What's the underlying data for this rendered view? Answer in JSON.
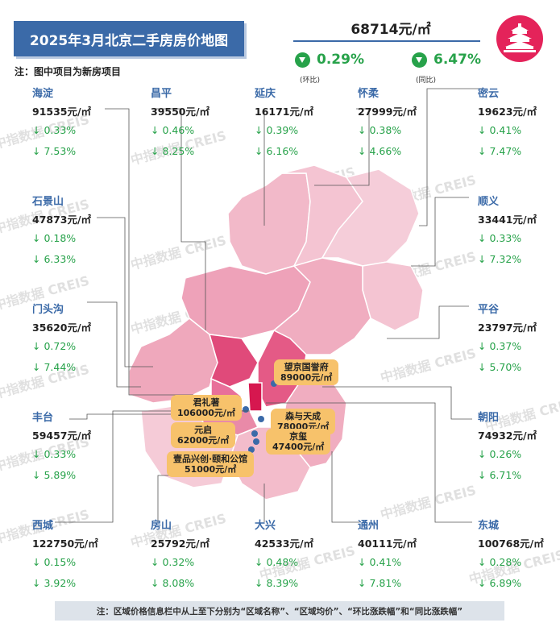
{
  "header": {
    "title": "2025年3月北京二手房房价地图",
    "note": "注：图中项目为新房项目"
  },
  "summary": {
    "avg_price": "68714元/㎡",
    "mom_change": "0.29%",
    "mom_label": "(环比)",
    "yoy_change": "6.47%",
    "yoy_label": "(同比)"
  },
  "logo_icon": "temple-of-heaven-icon",
  "colors": {
    "title_bg": "#3b6aa8",
    "accent": "#e4235a",
    "decline": "#27a24a",
    "project_label": "#f7c26b"
  },
  "districts": [
    {
      "name": "海淀",
      "price": "91535元/㎡",
      "mom": "↓ 0.33%",
      "yoy": "↓ 7.53%"
    },
    {
      "name": "昌平",
      "price": "39550元/㎡",
      "mom": "↓ 0.46%",
      "yoy": "↓ 8.25%"
    },
    {
      "name": "延庆",
      "price": "16171元/㎡",
      "mom": "↓ 0.39%",
      "yoy": "↓ 6.16%"
    },
    {
      "name": "怀柔",
      "price": "27999元/㎡",
      "mom": "↓ 0.38%",
      "yoy": "↓ 4.66%"
    },
    {
      "name": "密云",
      "price": "19623元/㎡",
      "mom": "↓ 0.41%",
      "yoy": "↓ 7.47%"
    },
    {
      "name": "石景山",
      "price": "47873元/㎡",
      "mom": "↓ 0.18%",
      "yoy": "↓ 6.33%"
    },
    {
      "name": "顺义",
      "price": "33441元/㎡",
      "mom": "↓ 0.33%",
      "yoy": "↓ 7.32%"
    },
    {
      "name": "门头沟",
      "price": "35620元/㎡",
      "mom": "↓ 0.72%",
      "yoy": "↓ 7.44%"
    },
    {
      "name": "平谷",
      "price": "23797元/㎡",
      "mom": "↓ 0.37%",
      "yoy": "↓ 5.70%"
    },
    {
      "name": "丰台",
      "price": "59457元/㎡",
      "mom": "↓ 0.33%",
      "yoy": "↓ 5.89%"
    },
    {
      "name": "朝阳",
      "price": "74932元/㎡",
      "mom": "↓ 0.26%",
      "yoy": "↓ 6.71%"
    },
    {
      "name": "西城",
      "price": "122750元/㎡",
      "mom": "↓ 0.15%",
      "yoy": "↓ 3.92%"
    },
    {
      "name": "房山",
      "price": "25792元/㎡",
      "mom": "↓ 0.32%",
      "yoy": "↓ 8.08%"
    },
    {
      "name": "大兴",
      "price": "42533元/㎡",
      "mom": "↓ 0.48%",
      "yoy": "↓ 8.39%"
    },
    {
      "name": "通州",
      "price": "40111元/㎡",
      "mom": "↓ 0.41%",
      "yoy": "↓ 7.81%"
    },
    {
      "name": "东城",
      "price": "100768元/㎡",
      "mom": "↓ 0.28%",
      "yoy": "↓ 6.89%"
    }
  ],
  "projects": [
    {
      "name": "望京国誉府",
      "price": "89000元/㎡"
    },
    {
      "name": "君礼著",
      "price": "106000元/㎡"
    },
    {
      "name": "森与天成",
      "price": "78000元/㎡"
    },
    {
      "name": "元启",
      "price": "62000元/㎡"
    },
    {
      "name": "京玺",
      "price": "47400元/㎡"
    },
    {
      "name": "壹品兴创·颐和公馆",
      "price": "51000元/㎡"
    }
  ],
  "watermark": "中指数据 CREIS",
  "footer": "注：区域价格信息栏中从上至下分别为“区域名称”、“区域均价”、“环比涨跌幅”和“同比涨跌幅”"
}
